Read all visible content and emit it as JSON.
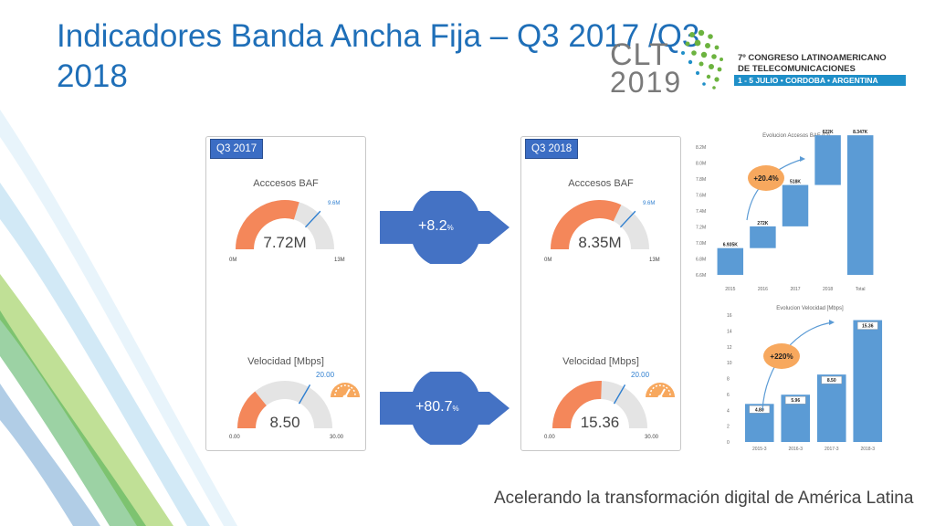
{
  "title": "Indicadores Banda Ancha Fija – Q3 2017 /Q3 2018",
  "logo": {
    "clt": "CLT",
    "year": "2019",
    "line1": "7º CONGRESO LATINOAMERICANO",
    "line2": "DE TELECOMUNICACIONES",
    "line3": "1 - 5 JULIO • CORDOBA • ARGENTINA"
  },
  "panels": [
    {
      "tag": "Q3 2017",
      "accesos": {
        "title": "Acccesos BAF",
        "value_label": "7.72M",
        "value": 7.72,
        "min": 0,
        "max": 13,
        "target": 9.6,
        "min_label": "0M",
        "max_label": "13M",
        "target_label": "9.6M"
      },
      "velocidad": {
        "title": "Velocidad [Mbps]",
        "value_label": "8.50",
        "value": 8.5,
        "min": 0,
        "max": 30,
        "target": 20,
        "min_label": "0.00",
        "max_label": "30.00",
        "target_label": "20.00"
      }
    },
    {
      "tag": "Q3 2018",
      "accesos": {
        "title": "Acccesos BAF",
        "value_label": "8.35M",
        "value": 8.35,
        "min": 0,
        "max": 13,
        "target": 9.6,
        "min_label": "0M",
        "max_label": "13M",
        "target_label": "9.6M"
      },
      "velocidad": {
        "title": "Velocidad [Mbps]",
        "value_label": "15.36",
        "value": 15.36,
        "min": 0,
        "max": 30,
        "target": 20,
        "min_label": "0.00",
        "max_label": "30.00",
        "target_label": "20.00"
      }
    }
  ],
  "arrows": [
    {
      "value": "+8.2",
      "unit": "%"
    },
    {
      "value": "+80.7",
      "unit": "%"
    }
  ],
  "colors": {
    "title": "#1f6fb8",
    "gauge_fill": "#f4875a",
    "gauge_bg": "#e4e4e4",
    "gauge_target": "#2f7fd0",
    "arrow": "#4472c4",
    "bar": "#5b9bd5",
    "badge": "#f7a85e"
  },
  "chart_data": [
    {
      "type": "bar",
      "title": "Evolucion Accesos BAF (Q)",
      "categories": [
        "2015",
        "2016",
        "2017",
        "2018",
        "Total"
      ],
      "values": [
        6.935,
        0.272,
        0.518,
        0.622,
        8.347
      ],
      "data_labels": [
        "6.935K",
        "272K",
        "518K",
        "622K",
        "8.347K"
      ],
      "waterfall": true,
      "ylim": [
        6.6,
        8.2
      ],
      "yticks": [
        "6.6M",
        "6.8M",
        "7.0M",
        "7.2M",
        "7.4M",
        "7.6M",
        "7.8M",
        "8.0M",
        "8.2M"
      ],
      "annotation": "+20.4%"
    },
    {
      "type": "bar",
      "title": "Evolucion Velocidad [Mbps]",
      "categories": [
        "2015-3",
        "2016-3",
        "2017-3",
        "2018-3"
      ],
      "values": [
        4.8,
        5.96,
        8.5,
        15.36
      ],
      "data_labels": [
        "4.80",
        "5.96",
        "8.50",
        "15.36"
      ],
      "ylim": [
        0,
        16
      ],
      "yticks": [
        "0",
        "2",
        "4",
        "6",
        "8",
        "10",
        "12",
        "14",
        "16"
      ],
      "annotation": "+220%"
    }
  ],
  "footer": "Acelerando la transformación digital de América Latina"
}
